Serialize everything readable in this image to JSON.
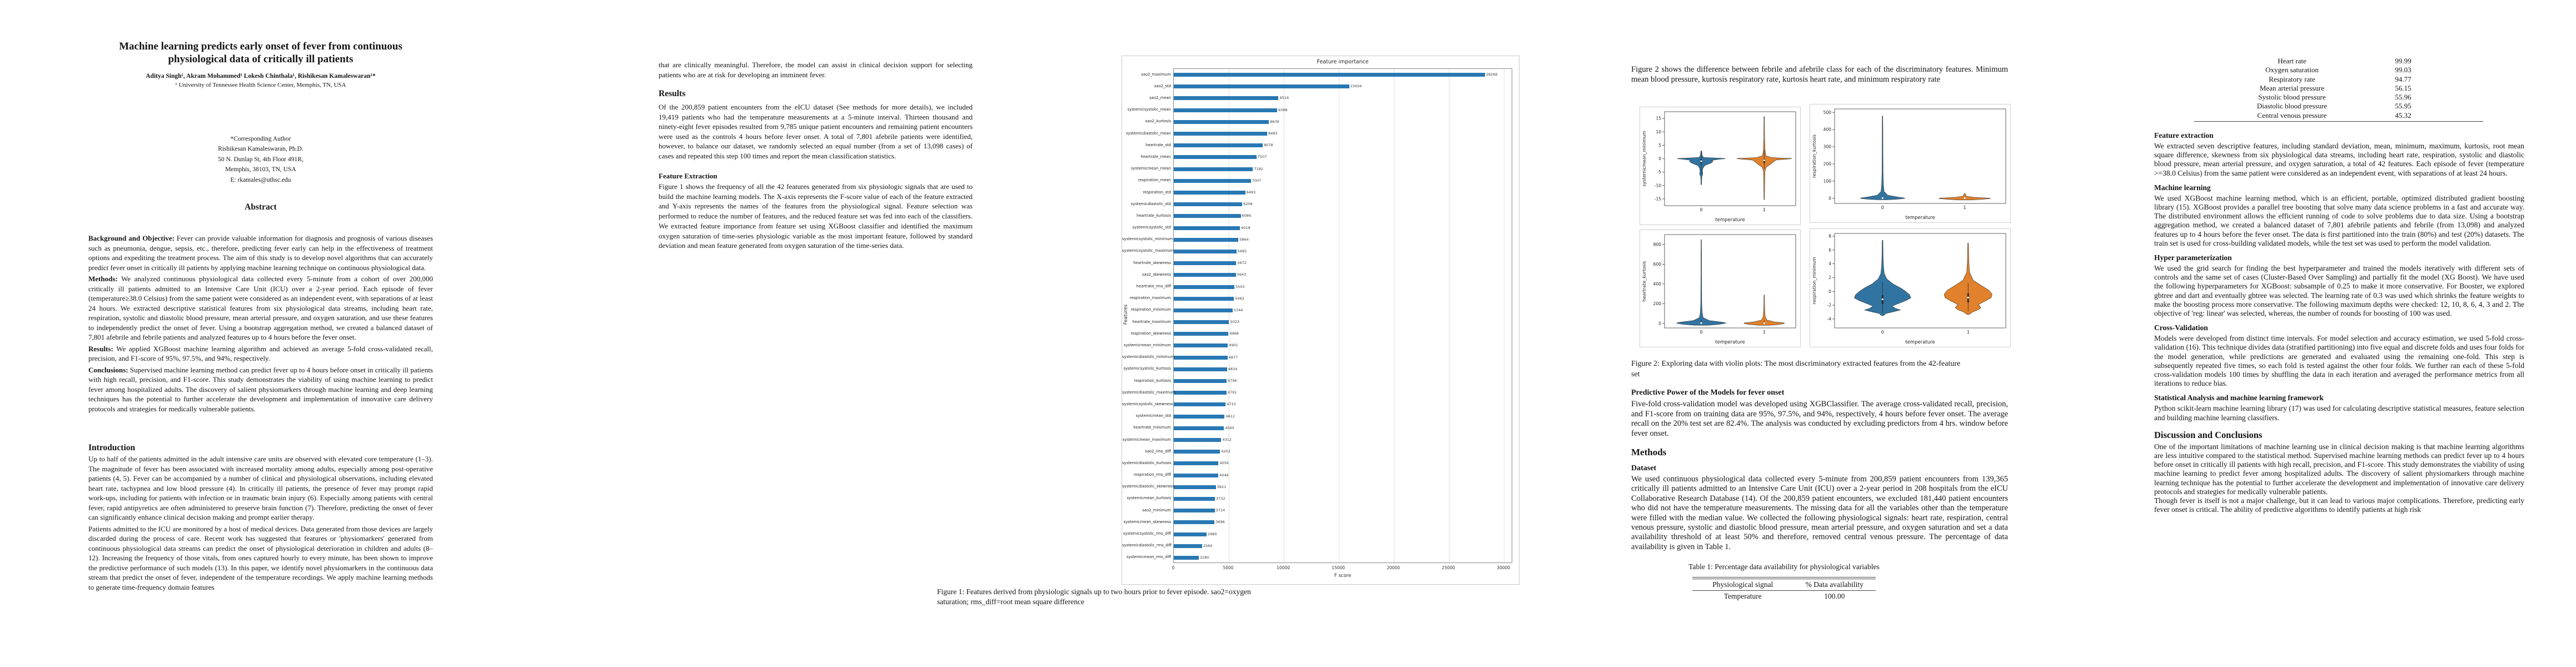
{
  "col1": {
    "title_line1": "Machine learning predicts early onset of fever from continuous",
    "title_line2": "physiological data of critically ill patients",
    "authors": "Aditya Singh¹, Akram Mohammed¹ Lokesh Chinthala¹, Rishikesan Kamaleswaran¹*",
    "affiliation": "¹ University of Tennessee Health Science Center, Memphis, TN, USA",
    "corresponding": [
      "*Corresponding Author",
      "Rishikesan Kamaleswaran, Ph.D.",
      "50 N. Dunlap St, 4th Floor 491R,",
      "Memphis, 38103, TN, USA",
      "E: rkamales@uthsc.edu"
    ],
    "abstract_heading": "Abstract",
    "abstract": [
      {
        "label": "Background and Objective:",
        "text": "Fever can provide valuable information for diagnosis and prognosis of various diseases such as pneumonia, dengue, sepsis, etc., therefore, predicting fever early can help in the effectiveness of treatment options and expediting the treatment process. The aim of this study is to develop novel algorithms that can accurately predict fever onset in critically ill patients by applying machine learning technique on continuous physiological data."
      },
      {
        "label": "Methods:",
        "text": "We analyzed continuous physiological data collected every 5-minute from a cohort of over 200,000 critically ill patients admitted to an Intensive Care Unit (ICU) over a 2-year period. Each episode of fever (temperature≥38.0 Celsius) from the same patient were considered as an independent event, with separations of at least 24 hours. We extracted descriptive statistical features from six physiological data streams, including heart rate, respiration, systolic and diastolic blood pressure, mean arterial pressure, and oxygen saturation, and use these features to independently predict the onset of fever. Using a bootstrap aggregation method, we created a balanced dataset of 7,801 afebrile and febrile patients and analyzed features up to 4 hours before the fever onset."
      },
      {
        "label": "Results:",
        "text": "We applied XGBoost machine learning algorithm and achieved an average 5-fold cross-validated recall, precision, and F1-score of 95%, 97.5%, and 94%, respectively."
      },
      {
        "label": "Conclusions:",
        "text": "Supervised machine learning method can predict fever up to 4 hours before onset in critically ill patients with high recall, precision, and F1-score. This study demonstrates the viability of using machine learning to predict fever among hospitalized adults. The discovery of salient physiomarkers through machine learning and deep learning techniques has the potential to further accelerate the development and implementation of innovative care delivery protocols and strategies for medically vulnerable patients."
      }
    ],
    "intro_heading": "Introduction",
    "intro": [
      "Up to half of the patients admitted in the adult intensive care units are observed with elevated core temperature (1–3). The magnitude of fever has been associated with increased mortality among adults, especially among post-operative patients (4, 5). Fever can be accompanied by a number of clinical and physiological observations, including elevated heart rate, tachypnea and low blood pressure (4). In critically ill patients, the presence of fever may prompt rapid work-ups, including for patients with infection or in traumatic brain injury (6). Especially among patients with central fever, rapid antipyretics are often administered to preserve brain function (7). Therefore, predicting the onset of fever can significantly enhance clinical decision making and prompt earlier therapy.",
      "Patients admitted to the ICU are monitored by a host of medical devices. Data generated from those devices are largely discarded during the process of care. Recent work has suggested that features or 'physiomarkers' generated from continuous physiological data streams can predict the onset of physiological deterioration in children and adults (8–12). Increasing the frequency of those vitals, from ones captured hourly to every minute, has been shown to improve the predictive performance of such models (13). In this paper, we identify novel physiomarkers in the continuous data stream that predict the onset of fever, independent of the temperature recordings. We apply machine learning methods to generate time-frequency domain features"
    ]
  },
  "col2": {
    "lead": "that are clinically meaningful. Therefore, the model can assist in clinical decision support for selecting patients who are at risk for developing an imminent fever.",
    "results_heading": "Results",
    "results_text": "Of the 200,859 patient encounters from the eICU dataset (See methods for more details), we included 19,419 patients who had the temperature measurements at a 5-minute interval. Thirteen thousand and ninety-eight fever episodes resulted from 9,785 unique patient encounters and remaining patient encounters were used as the controls 4 hours before fever onset. A total of 7,801 afebrile patients were identified, however, to balance our dataset, we randomly selected an equal number (from a set of 13,098 cases) of cases and repeated this step 100 times and report the mean classification statistics.",
    "feature_heading": "Feature Extraction",
    "feature_text": "Figure 1 shows the frequency of all the 42 features generated from six physiologic signals that are used to build the machine learning models. The X-axis represents the F-score value of each of the feature extracted and Y-axis represents the names of the features from the physiological signal. Feature selection was performed to reduce the number of features, and the reduced feature set was fed into each of the classifiers. We extracted feature importance from feature set using XGBoost classifier and identified the maximum oxygen saturation of time-series physiologic variable as the most important feature, followed by standard deviation and mean feature generated from oxygen saturation of the time-series data."
  },
  "figure1": {
    "title": "Feature importance",
    "xlabel": "F score",
    "ylabel": "Features",
    "bar_color": "#2878b4",
    "caption_line1": "Figure 1: Features derived from physiologic signals up to two hours prior to fever episode. sao2=oxygen",
    "caption_line2": "saturation; rms_diff=root mean square difference"
  },
  "col3": {
    "lead": "Figure 2 shows the difference between febrile and afebrile class for each of the discriminatory features. Minimum mean blood pressure, kurtosis respiratory rate, kurtosis heart rate, and minimum respiratory rate",
    "fig2_caption_line1": "Figure 2: Exploring data with violin plots:  The most discriminatory extracted features from the 42-feature",
    "fig2_caption_line2": "set",
    "predictive_heading": "Predictive Power of the Models for fever onset",
    "predictive_text": "Five-fold cross-validation model was developed using XGBClassifier. The average cross-validated recall, precision, and F1-score from on training data are 95%, 97.5%, and 94%, respectively, 4 hours before fever onset. The average recall on the 20% test set are 82.4%. The analysis was conducted by excluding predictors from 4 hrs. window before fever onset.",
    "methods_heading": "Methods",
    "dataset_heading": "Dataset",
    "dataset_text": "We used continuous physiological data collected every 5-minute from 200,859 patient encounters from 139,365 critically ill patients admitted to an Intensive Care Unit (ICU) over a 2-year period in 208 hospitals from the eICU Collaborative Research Database (14). Of the 200,859 patient encounters, we excluded 181,440 patient encounters who did not have the temperature measurements. The missing data for all the variables other than the temperature were filled with the median value. We collected the following physiological signals: heart rate, respiration, central venous pressure, systolic and diastolic blood pressure, mean arterial pressure, and oxygen saturation and set a data availability threshold of at least 50% and therefore, removed central venous pressure. The percentage of data availability is given in Table 1.",
    "table_caption": "Table 1: Percentage data availability for physiological variables",
    "table_headers": [
      "Physiological signal",
      "% Data availability"
    ],
    "table_rows": [
      [
        "Temperature",
        "100.00"
      ]
    ]
  },
  "col4": {
    "table_rows": [
      [
        "Heart rate",
        "99.99"
      ],
      [
        "Oxygen saturation",
        "99.03"
      ],
      [
        "Respiratory rate",
        "94.77"
      ],
      [
        "Mean arterial pressure",
        "56.15"
      ],
      [
        "Systolic blood pressure",
        "55.96"
      ],
      [
        "Diastolic blood pressure",
        "55.95"
      ],
      [
        "Central venous pressure",
        "45.32"
      ]
    ],
    "sections": [
      {
        "heading": "Feature extraction",
        "size": "normal",
        "paras": [
          "We extracted seven descriptive features, including standard deviation, mean, minimum, maximum, kurtosis, root mean square difference, skewness from six physiological data streams, including heart rate, respiration, systolic and diastolic blood pressure, mean arterial pressure, and oxygen saturation, a total of 42 features. Each episode of fever (temperature >=38.0 Celsius) from the same patient were considered as an independent event, with separations of at least 24 hours."
        ]
      },
      {
        "heading": "Machine learning",
        "size": "normal",
        "paras": [
          "We used XGBoost machine learning method, which is an efficient, portable, optimized distributed gradient boosting library (15). XGBoost provides a parallel tree boosting that solve many data science problems in a fast and accurate way. The distributed environment allows the efficient running of code to solve problems due to data size. Using a bootstrap aggregation method, we created a balanced dataset of 7,801 afebrile patients and febrile (from 13,098) and analyzed features up to 4 hours before the fever onset. The data is first partitioned into the train (80%) and test (20%) datasets. The train set is used for cross-building validated models, while the test set was used to perform the model validation."
        ]
      },
      {
        "heading": "Hyper parameterization",
        "size": "normal",
        "paras": [
          "We used the grid search for finding the best hyperparameter and trained the models iteratively with different sets of controls and the same set of cases (Cluster-Based Over Sampling) and partially fit the model (XG Boost). We have used the following hyperparameters for XGBoost: subsample of 0.25 to make it more conservative. For Booster, we explored gbtree and dart and eventually gbtree was selected. The learning rate of 0.3 was used which shrinks the feature weights to make the boosting process more conservative. The following maximum depths were checked: 12, 10, 8, 6, 4, 3 and 2. The objective of 'reg: linear' was selected, whereas, the number of rounds for boosting of 100 was used."
        ]
      },
      {
        "heading": "Cross-Validation",
        "size": "normal",
        "paras": [
          "Models were developed from distinct time intervals. For model selection and accuracy estimation, we used 5-fold cross-validation (16). This technique divides data (stratified partitioning) into five equal and discrete folds and uses four folds for the model generation, while predictions are generated and evaluated using the remaining one-fold. This step is subsequently repeated five times, so each fold is tested against the other four folds. We further ran each of these 5-fold cross-validation models 100 times by shuffling the data in each iteration and averaged the performance metrics from all iterations to reduce bias."
        ]
      },
      {
        "heading": "Statistical Analysis and machine learning framework",
        "size": "normal",
        "paras": [
          "Python scikit-learn machine learning library  (17) was used for calculating descriptive statistical measures, feature selection and building machine learning classifiers."
        ]
      },
      {
        "heading": "Discussion and Conclusions",
        "size": "large",
        "paras": [
          "One of the important limitations of machine learning use in clinical decision making is that machine learning algorithms are less intuitive compared to the statistical method. Supervised machine learning methods can predict fever up to 4 hours before onset in critically ill patients with high recall, precision, and F1-score. This study demonstrates the viability of using machine learning to predict fever among hospitalized adults. The discovery of salient physiomarkers through machine learning technique has the potential to further accelerate the development and implementation of innovative care delivery protocols and strategies for medically vulnerable patients.",
          "Though fever is itself is not a major challenge, but it can lead to various major complications. Therefore, predicting early fever onset is critical. The ability of predictive algorithms to identify patients at high risk"
        ]
      }
    ]
  },
  "chart_data": [
    {
      "type": "bar",
      "orientation": "horizontal",
      "title": "Feature importance",
      "xlabel": "F score",
      "ylabel": "Features",
      "xlim": [
        0,
        30800
      ],
      "xticks": [
        0,
        5000,
        10000,
        15000,
        20000,
        25000,
        30000
      ],
      "grid": true,
      "categories": [
        "sao2_maximum",
        "sao2_std",
        "sao2_mean",
        "systemicsystolic_mean",
        "sao2_kurtosis",
        "systemicdiastolic_mean",
        "heartrate_std",
        "heartrate_mean",
        "systemicmean_mean",
        "respiration_mean",
        "respiration_std",
        "systemicdiastolic_std",
        "heartrate_kurtosis",
        "systemicsystolic_std",
        "systemicsystolic_minimum",
        "systemicsystolic_maximum",
        "heartrate_skewness",
        "sao2_skewness",
        "heartrate_rms_diff",
        "respiration_maximum",
        "respiration_minimum",
        "heartrate_maximum",
        "respiration_skewness",
        "systemicmean_minimum",
        "systemicdiastolic_minimum",
        "systemicsystolic_kurtosis",
        "respiration_kurtosis",
        "systemicdiastolic_maximum",
        "systemicsystolic_skewness",
        "systemicmean_std",
        "heartrate_minimum",
        "systemicmean_maximum",
        "sao2_rms_diff",
        "systemicdiastolic_kurtosis",
        "respiration_rms_diff",
        "systemicdiastolic_skewness",
        "systemicmean_kurtosis",
        "sao2_minimum",
        "systemicmean_skewness",
        "systemicsystolic_rms_diff",
        "systemicdiastolic_rms_diff",
        "systemicmean_rms_diff"
      ],
      "values": [
        28266,
        15934,
        9516,
        9388,
        8639,
        8483,
        8078,
        7507,
        7182,
        7007,
        6493,
        6208,
        6086,
        6018,
        5864,
        5685,
        5672,
        5643,
        5503,
        5462,
        5344,
        5023,
        4968,
        4901,
        4877,
        4834,
        4796,
        4791,
        4710,
        4612,
        4565,
        4312,
        4202,
        4056,
        4046,
        3821,
        3732,
        3714,
        3696,
        2980,
        2564,
        2280
      ]
    },
    {
      "type": "violin",
      "series": [
        "afebrile (0)",
        "febrile (1)"
      ],
      "colors": {
        "afebrile": "#3274a1",
        "febrile": "#e1812c"
      },
      "subplots": [
        {
          "id": "tl",
          "ylabel": "systemicmean_minimum",
          "xlabel": "temperature",
          "categories": [
            "0",
            "1"
          ],
          "yticks": [
            15,
            10,
            5,
            0,
            -5,
            -10,
            -15
          ],
          "ylim": [
            -17.5,
            17.5
          ],
          "summary": "both classes massed near 0, blue tail to -10, orange tails +16 to -15"
        },
        {
          "id": "tr",
          "ylabel": "respiration_kurtosis",
          "xlabel": "temperature",
          "categories": [
            "0",
            "1"
          ],
          "yticks": [
            500,
            400,
            300,
            200,
            100,
            0
          ],
          "ylim": [
            -30,
            520
          ],
          "summary": "blue narrow spike to ~480, both flat near 0"
        },
        {
          "id": "bl",
          "ylabel": "heartrate_kurtosis",
          "xlabel": "temperature",
          "categories": [
            "0",
            "1"
          ],
          "yticks": [
            800,
            600,
            400,
            200,
            0
          ],
          "ylim": [
            -45,
            900
          ],
          "summary": "blue spike to ~850, orange spike to ~290, mass near 0"
        },
        {
          "id": "br",
          "ylabel": "respiration_minimum",
          "xlabel": "temperature",
          "categories": [
            "0",
            "1"
          ],
          "yticks": [
            8,
            6,
            4,
            2,
            0,
            -2,
            -4
          ],
          "ylim": [
            -5.3,
            8.4
          ],
          "summary": "broad violins centered near -1, blue spike to ~7.5"
        }
      ]
    }
  ]
}
